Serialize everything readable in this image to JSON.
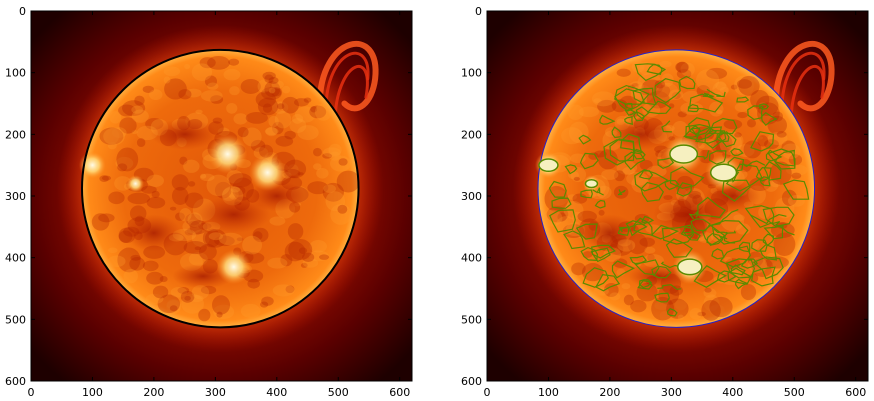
{
  "chart_data": [
    {
      "type": "image",
      "subject": "solar disk (EUV image) with fitted limb circle",
      "colormap": "red-orange hot",
      "xlim": [
        0,
        620
      ],
      "ylim": [
        600,
        0
      ],
      "xticks": [
        0,
        100,
        200,
        300,
        400,
        500,
        600
      ],
      "yticks": [
        0,
        100,
        200,
        300,
        400,
        500,
        600
      ],
      "overlays": [
        {
          "shape": "circle",
          "color": "#000000",
          "center": [
            308,
            288
          ],
          "radius": 225
        }
      ]
    },
    {
      "type": "image",
      "subject": "solar disk with intensity contours",
      "colormap": "red-orange hot",
      "xlim": [
        0,
        620
      ],
      "ylim": [
        600,
        0
      ],
      "xticks": [
        0,
        100,
        200,
        300,
        400,
        500,
        600
      ],
      "yticks": [
        0,
        100,
        200,
        300,
        400,
        500,
        600
      ],
      "overlays": [
        {
          "shape": "limb-contour",
          "color": "#2222cc",
          "center": [
            308,
            288
          ],
          "radius": 225
        },
        {
          "shape": "contours",
          "color": "#5a8a00"
        }
      ]
    }
  ],
  "tick_labels": [
    "0",
    "100",
    "200",
    "300",
    "400",
    "500",
    "600"
  ]
}
